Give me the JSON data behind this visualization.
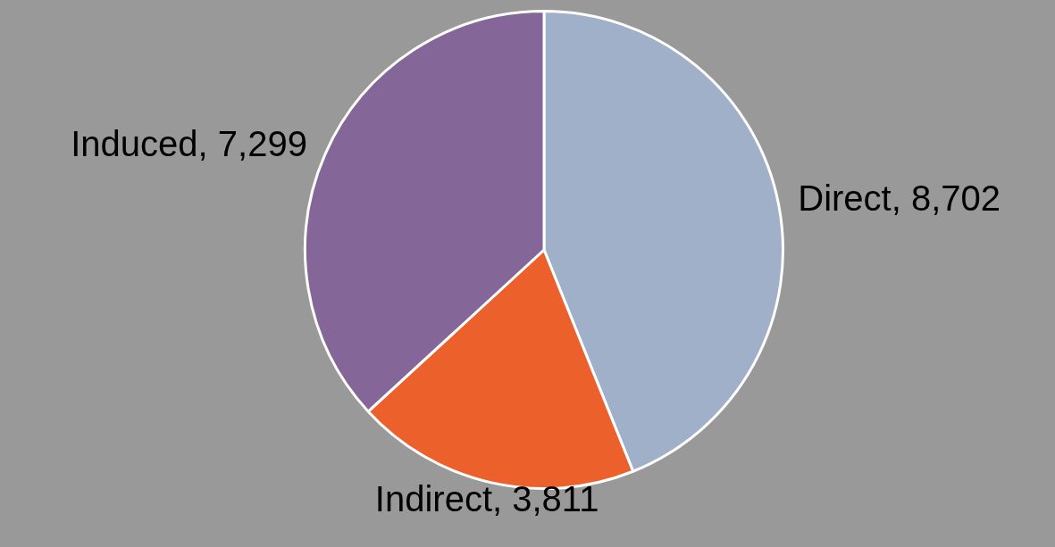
{
  "chart_data": {
    "type": "pie",
    "categories": [
      "Direct",
      "Indirect",
      "Induced"
    ],
    "values": [
      8702,
      3811,
      7299
    ],
    "value_labels": [
      "8,702",
      "3,811",
      "7,299"
    ],
    "colors": [
      "#a0b0c8",
      "#ec602c",
      "#846699"
    ],
    "legend": false
  }
}
